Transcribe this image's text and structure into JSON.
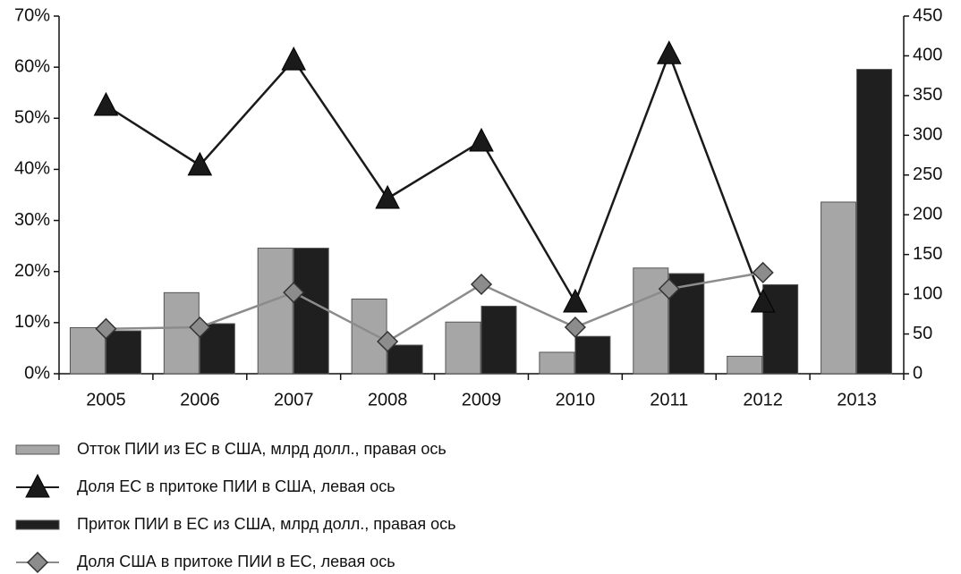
{
  "chart_data": {
    "type": "bar",
    "categories": [
      "2005",
      "2006",
      "2007",
      "2008",
      "2009",
      "2010",
      "2011",
      "2012",
      "2013"
    ],
    "ylim": [
      0,
      70
    ],
    "yticks": [
      {
        "value": 0,
        "label": "0%"
      },
      {
        "value": 10,
        "label": "10%"
      },
      {
        "value": 20,
        "label": "20%"
      },
      {
        "value": 30,
        "label": "30%"
      },
      {
        "value": 40,
        "label": "40%"
      },
      {
        "value": 50,
        "label": "50%"
      },
      {
        "value": 60,
        "label": "60%"
      },
      {
        "value": 70,
        "label": "70%"
      }
    ],
    "y2lim": [
      0,
      450
    ],
    "y2ticks": [
      0,
      50,
      100,
      150,
      200,
      250,
      300,
      350,
      400,
      450
    ],
    "grid": false,
    "legend": "bottom",
    "series": [
      {
        "name": "Отток ПИИ из ЕС в США, млрд долл., правая ось",
        "type": "bar",
        "axis": "y2",
        "color": "#a6a6a6",
        "values": [
          58,
          102,
          158,
          94,
          65,
          27,
          133,
          22,
          216
        ]
      },
      {
        "name": "Доля ЕС в притоке ПИИ в США, левая ось",
        "type": "line",
        "marker": "triangle",
        "color": "#1a1a1a",
        "values": [
          52.5,
          40.8,
          61.4,
          34.3,
          45.5,
          14,
          62.6,
          14,
          null
        ]
      },
      {
        "name": "Приток ПИИ в ЕС из США, млрд долл., правая ось",
        "type": "bar",
        "axis": "y2",
        "color": "#1f1f1f",
        "values": [
          54,
          63,
          158,
          36,
          85,
          47,
          126,
          112,
          383
        ]
      },
      {
        "name": "Доля США в притоке ПИИ в ЕС, левая ось",
        "type": "line",
        "marker": "diamond",
        "color": "#8c8c8c",
        "values": [
          8.8,
          9.1,
          15.9,
          6.3,
          17.5,
          9.1,
          16.6,
          19.8,
          null
        ]
      }
    ]
  }
}
